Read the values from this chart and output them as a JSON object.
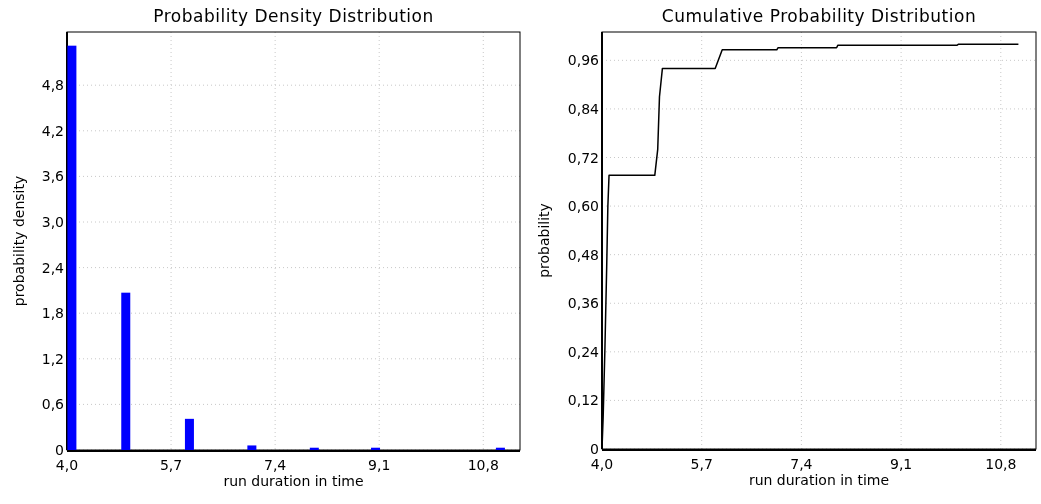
{
  "chart_data": [
    {
      "type": "bar",
      "title": "Probability Density Distribution",
      "xlabel": "run duration in time",
      "ylabel": "probability density",
      "x": [
        4.08,
        4.96,
        6.0,
        7.02,
        8.04,
        9.04,
        11.08
      ],
      "values": [
        5.32,
        2.07,
        0.41,
        0.06,
        0.03,
        0.03,
        0.03
      ],
      "color": "#0000ff",
      "xlim": [
        4.0,
        11.4
      ],
      "ylim": [
        0,
        5.5
      ],
      "xticks": [
        {
          "value": 4.0,
          "label": "4,0"
        },
        {
          "value": 5.7,
          "label": "5,7"
        },
        {
          "value": 7.4,
          "label": "7,4"
        },
        {
          "value": 9.1,
          "label": "9,1"
        },
        {
          "value": 10.8,
          "label": "10,8"
        }
      ],
      "yticks": [
        0,
        {
          "value": 0.6,
          "label": "0,6"
        },
        {
          "value": 1.2,
          "label": "1,2"
        },
        {
          "value": 1.8,
          "label": "1,8"
        },
        {
          "value": 2.4,
          "label": "2,4"
        },
        {
          "value": 3.0,
          "label": "3,0"
        },
        {
          "value": 3.6,
          "label": "3,6"
        },
        {
          "value": 4.2,
          "label": "4,2"
        },
        {
          "value": 4.8,
          "label": "4,8"
        }
      ],
      "grid": true
    },
    {
      "type": "line",
      "title": "Cumulative Probability Distribution",
      "xlabel": "run duration in time",
      "ylabel": "probability",
      "x": [
        4.0,
        4.02,
        4.05,
        4.08,
        4.1,
        4.12,
        4.9,
        4.95,
        4.98,
        5.03,
        5.93,
        6.05,
        6.98,
        7.0,
        8.0,
        8.02,
        10.05,
        10.08,
        11.1
      ],
      "values": [
        0,
        0.08,
        0.25,
        0.45,
        0.6,
        0.676,
        0.676,
        0.74,
        0.87,
        0.94,
        0.94,
        0.986,
        0.986,
        0.991,
        0.991,
        0.997,
        0.997,
        1.0,
        1.0
      ],
      "color": "#000000",
      "xlim": [
        4.0,
        11.4
      ],
      "ylim": [
        0,
        1.03
      ],
      "xticks": [
        {
          "value": 4.0,
          "label": "4,0"
        },
        {
          "value": 5.7,
          "label": "5,7"
        },
        {
          "value": 7.4,
          "label": "7,4"
        },
        {
          "value": 9.1,
          "label": "9,1"
        },
        {
          "value": 10.8,
          "label": "10,8"
        }
      ],
      "yticks": [
        0,
        {
          "value": 0.12,
          "label": "0,12"
        },
        {
          "value": 0.24,
          "label": "0,24"
        },
        {
          "value": 0.36,
          "label": "0,36"
        },
        {
          "value": 0.48,
          "label": "0,48"
        },
        {
          "value": 0.6,
          "label": "0,60"
        },
        {
          "value": 0.72,
          "label": "0,72"
        },
        {
          "value": 0.84,
          "label": "0,84"
        },
        {
          "value": 0.96,
          "label": "0,96"
        }
      ],
      "grid": true
    }
  ]
}
